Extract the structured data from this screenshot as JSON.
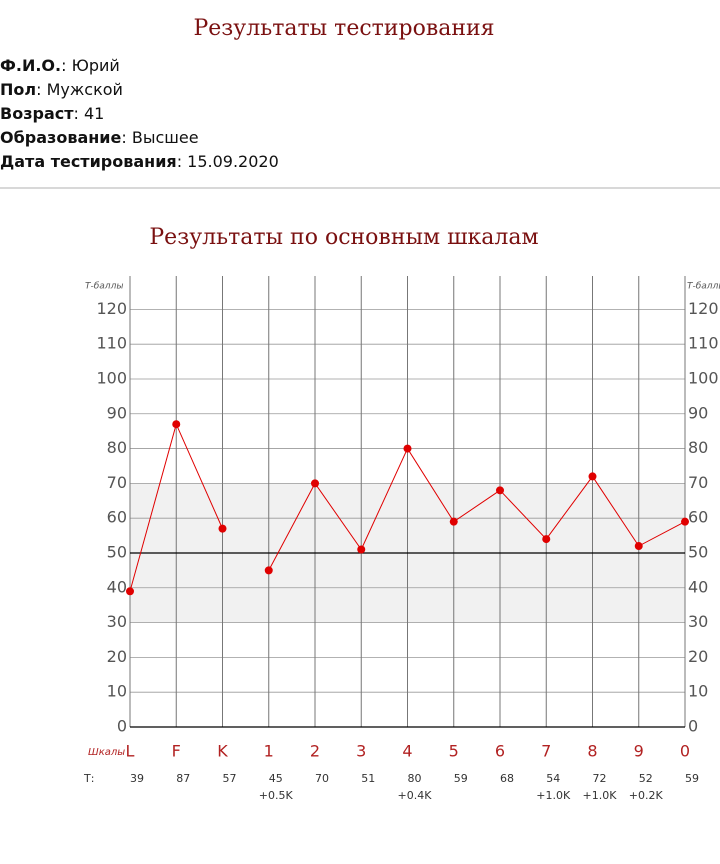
{
  "header": {
    "title": "Результаты тестирования"
  },
  "info": [
    {
      "label": "Ф.И.О.",
      "value": ": Юрий"
    },
    {
      "label": "Пол",
      "value": ": Мужской"
    },
    {
      "label": "Возраст",
      "value": ": 41"
    },
    {
      "label": "Образование",
      "value": ": Высшее"
    },
    {
      "label": "Дата тестирования",
      "value": ": 15.09.2020"
    }
  ],
  "chart_data": {
    "type": "line",
    "title": "Результаты по основным шкалам",
    "y_label": "Т-баллы",
    "category_label": "Шкалы",
    "value_row_label": "Т:",
    "categories": [
      "L",
      "F",
      "K",
      "1",
      "2",
      "3",
      "4",
      "5",
      "6",
      "7",
      "8",
      "9",
      "0"
    ],
    "series": [
      {
        "color": "#e00000",
        "values": [
          39,
          87,
          57,
          null,
          null,
          null,
          null,
          null,
          null,
          null,
          null,
          null,
          null
        ]
      },
      {
        "color": "#e00000",
        "values": [
          null,
          null,
          null,
          45,
          70,
          51,
          80,
          59,
          68,
          54,
          72,
          52,
          59
        ]
      }
    ],
    "corrections": [
      null,
      null,
      null,
      "+0.5K",
      null,
      null,
      "+0.4K",
      null,
      null,
      "+1.0K",
      "+1.0K",
      "+0.2K",
      null
    ],
    "ylim": [
      0,
      127
    ],
    "yticks": [
      0,
      10,
      20,
      30,
      40,
      50,
      60,
      70,
      80,
      90,
      100,
      110,
      120
    ],
    "band": [
      30,
      70
    ],
    "reference_line": 50,
    "grid": true
  }
}
